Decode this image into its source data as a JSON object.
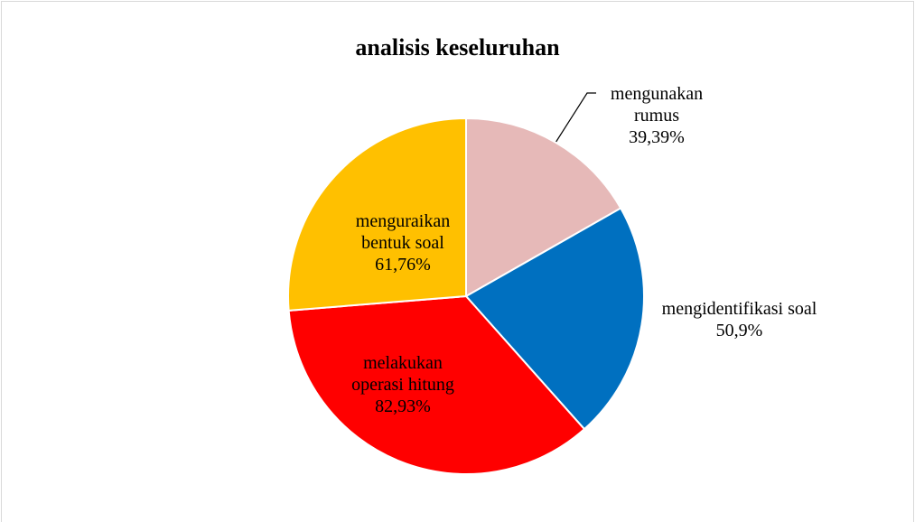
{
  "chart_data": {
    "type": "pie",
    "title": "analisis keseluruhan",
    "categories": [
      "mengunakan rumus",
      "mengidentifikasi soal",
      "melakukan operasi hitung",
      "menguraikan bentuk soal"
    ],
    "values": [
      39.39,
      50.9,
      82.93,
      61.76
    ],
    "value_labels": [
      "39,39%",
      "50,9%",
      "82,93%",
      "61,76%"
    ],
    "colors": [
      "#e6b9b8",
      "#0070c0",
      "#ff0000",
      "#ffc000"
    ]
  }
}
